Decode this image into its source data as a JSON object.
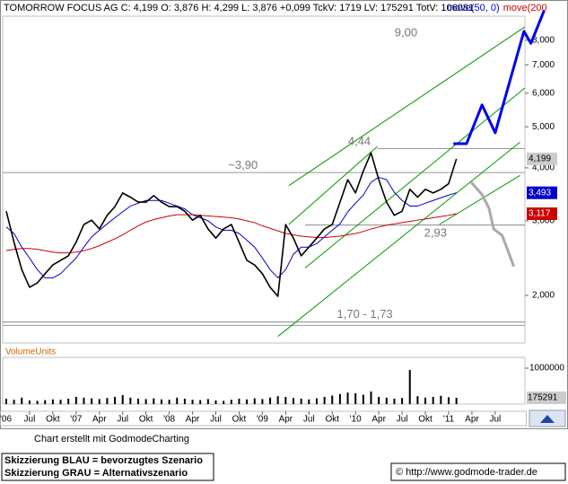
{
  "chart_data": {
    "type": "line",
    "title": "TOMORROW FOCUS AG C: 4,199 O: 3,876 H: 4,299 L: 3,876 +0,099 TckV: 1719 LV: 175291 TotV: 106081",
    "log_scale": true,
    "ylim": [
      1.544,
      9.12
    ],
    "yticks": [
      {
        "value": 2,
        "label": "2,000"
      },
      {
        "value": 3,
        "label": "3,000"
      },
      {
        "value": 4,
        "label": "4,000"
      },
      {
        "value": 5,
        "label": "5,000"
      },
      {
        "value": 6,
        "label": "6,000"
      },
      {
        "value": 7,
        "label": "7,000"
      },
      {
        "value": 8,
        "label": "8,000"
      }
    ],
    "xlim": [
      2.54,
      72.95
    ],
    "xticks": [
      {
        "value": 0,
        "label": "'06"
      },
      {
        "value": 6,
        "label": "Jul"
      },
      {
        "value": 9,
        "label": "Okt"
      },
      {
        "value": 12,
        "label": "'07"
      },
      {
        "value": 15,
        "label": "Apr"
      },
      {
        "value": 18,
        "label": "Jul"
      },
      {
        "value": 21,
        "label": "Okt"
      },
      {
        "value": 24,
        "label": "'08"
      },
      {
        "value": 27,
        "label": "Apr"
      },
      {
        "value": 30,
        "label": "Jul"
      },
      {
        "value": 33,
        "label": "Okt"
      },
      {
        "value": 36,
        "label": "'09"
      },
      {
        "value": 39,
        "label": "Apr"
      },
      {
        "value": 42,
        "label": "Jul"
      },
      {
        "value": 45,
        "label": "Okt"
      },
      {
        "value": 48,
        "label": "'10"
      },
      {
        "value": 51,
        "label": "Apr"
      },
      {
        "value": 54,
        "label": "Jul"
      },
      {
        "value": 57,
        "label": "Okt"
      },
      {
        "value": 60,
        "label": "'11"
      },
      {
        "value": 63,
        "label": "Apr"
      },
      {
        "value": 66,
        "label": "Jul"
      }
    ],
    "x": [
      3,
      4,
      5,
      6,
      7,
      8,
      9,
      10,
      11,
      12,
      13,
      14,
      15,
      16,
      17,
      18,
      19,
      20,
      21,
      22,
      23,
      24,
      25,
      26,
      27,
      28,
      29,
      30,
      31,
      32,
      33,
      34,
      35,
      36,
      37,
      38,
      39,
      40,
      41,
      42,
      43,
      44,
      45,
      46,
      47,
      48,
      49,
      50,
      51,
      52,
      53,
      54,
      55,
      56,
      57,
      58,
      59,
      60,
      61
    ],
    "price": {
      "color": "#000000",
      "values": [
        3.16,
        2.67,
        2.3,
        2.09,
        2.14,
        2.25,
        2.36,
        2.42,
        2.48,
        2.67,
        2.94,
        3.01,
        2.87,
        3.09,
        3.24,
        3.49,
        3.41,
        3.32,
        3.32,
        3.44,
        3.32,
        3.24,
        3.24,
        3.16,
        3.01,
        3.09,
        2.87,
        2.73,
        2.87,
        2.94,
        2.67,
        2.42,
        2.36,
        2.25,
        2.09,
        1.99,
        2.94,
        2.73,
        2.48,
        2.6,
        2.73,
        2.87,
        2.94,
        3.32,
        3.75,
        3.49,
        3.93,
        4.34,
        3.75,
        3.32,
        3.09,
        3.16,
        3.56,
        3.41,
        3.56,
        3.49,
        3.56,
        3.67,
        4.199
      ]
    },
    "series": [
      {
        "name": "move(50, 0)",
        "color": "#0000cc",
        "values": [
          2.9,
          2.8,
          2.6,
          2.45,
          2.3,
          2.2,
          2.2,
          2.25,
          2.35,
          2.45,
          2.6,
          2.75,
          2.85,
          2.95,
          3.05,
          3.15,
          3.25,
          3.3,
          3.35,
          3.35,
          3.35,
          3.3,
          3.25,
          3.2,
          3.1,
          3.05,
          3.0,
          2.9,
          2.85,
          2.85,
          2.8,
          2.7,
          2.6,
          2.45,
          2.3,
          2.2,
          2.3,
          2.5,
          2.6,
          2.6,
          2.65,
          2.75,
          2.85,
          2.95,
          3.15,
          3.3,
          3.45,
          3.7,
          3.8,
          3.75,
          3.5,
          3.35,
          3.25,
          3.25,
          3.3,
          3.35,
          3.4,
          3.45,
          3.493
        ]
      },
      {
        "name": "move(200",
        "color": "#cc0000",
        "values": [
          2.55,
          2.57,
          2.58,
          2.58,
          2.57,
          2.55,
          2.53,
          2.52,
          2.52,
          2.53,
          2.55,
          2.58,
          2.62,
          2.67,
          2.72,
          2.78,
          2.85,
          2.92,
          2.98,
          3.02,
          3.05,
          3.08,
          3.1,
          3.1,
          3.1,
          3.09,
          3.08,
          3.07,
          3.06,
          3.05,
          3.03,
          3.0,
          2.97,
          2.92,
          2.88,
          2.84,
          2.8,
          2.78,
          2.76,
          2.75,
          2.74,
          2.74,
          2.75,
          2.76,
          2.78,
          2.8,
          2.83,
          2.87,
          2.9,
          2.93,
          2.95,
          2.97,
          2.99,
          3.01,
          3.03,
          3.05,
          3.07,
          3.09,
          3.117
        ]
      }
    ],
    "price_tags": [
      {
        "value": 4.199,
        "label": "4,199",
        "color": "#cccccc",
        "text_color": "#000000"
      },
      {
        "value": 3.493,
        "label": "3,493",
        "color": "#0000cc",
        "text_color": "#ffffff"
      },
      {
        "value": 3.117,
        "label": "3,117",
        "color": "#cc0000",
        "text_color": "#ffffff"
      }
    ],
    "trendlines": [
      {
        "color": "#009900",
        "x": [
          39.4,
          69.8
        ],
        "y": [
          3.63,
          8.6
        ]
      },
      {
        "color": "#009900",
        "x": [
          41.5,
          69.8
        ],
        "y": [
          2.32,
          6.17
        ]
      },
      {
        "color": "#009900",
        "x": [
          38.0,
          69.2
        ],
        "y": [
          1.6,
          4.6
        ]
      },
      {
        "color": "#009900",
        "x": [
          39.4,
          50.8
        ],
        "y": [
          2.94,
          4.49
        ]
      },
      {
        "color": "#009900",
        "x": [
          58.8,
          69.2
        ],
        "y": [
          2.94,
          3.84
        ]
      }
    ],
    "scenarios": [
      {
        "color": "#0000ee",
        "x": [
          60.6,
          62.3,
          64.3,
          66.0,
          69.7,
          70.6,
          72.3
        ],
        "y": [
          4.56,
          4.56,
          5.63,
          4.84,
          8.4,
          7.87,
          9.4
        ]
      },
      {
        "color": "#aaaaaa",
        "x": [
          62.9,
          64.3,
          65.2,
          65.8,
          66.9,
          68.4
        ],
        "y": [
          3.7,
          3.46,
          3.21,
          2.87,
          2.77,
          2.34
        ]
      }
    ],
    "levels": [
      {
        "value": 3.9
      },
      {
        "value": 4.44,
        "from": 50.8
      },
      {
        "value": 2.93,
        "from": 41.5
      },
      {
        "value": 1.73
      },
      {
        "value": 1.7
      }
    ],
    "annotations": [
      {
        "text": "9,00",
        "x": 54.5,
        "y": 8.3
      },
      {
        "text": "4,44",
        "x": 48.5,
        "y": 4.6
      },
      {
        "text": "~3,90",
        "x": 33.5,
        "y": 4.05
      },
      {
        "text": "2,93",
        "x": 58.3,
        "y": 2.8
      },
      {
        "text": "1,70 - 1,73",
        "x": 49.2,
        "y": 1.8
      }
    ],
    "volume": {
      "title": "VolumeUnits",
      "color": "#000000",
      "values": [
        150000,
        120000,
        180000,
        100000,
        90000,
        110000,
        130000,
        120000,
        150000,
        200000,
        180000,
        160000,
        140000,
        170000,
        200000,
        250000,
        180000,
        150000,
        140000,
        160000,
        130000,
        120000,
        180000,
        150000,
        120000,
        110000,
        140000,
        100000,
        90000,
        120000,
        150000,
        130000,
        160000,
        140000,
        180000,
        220000,
        200000,
        170000,
        150000,
        130000,
        160000,
        200000,
        240000,
        280000,
        320000,
        300000,
        260000,
        350000,
        200000,
        180000,
        150000,
        170000,
        950000,
        220000,
        180000,
        200000,
        230000,
        190000,
        175291
      ],
      "ylim": [
        0,
        1300000
      ],
      "yticks": [
        1000000
      ],
      "tag": 175291
    },
    "credit": "Chart erstellt mit GodmodeCharting",
    "notes": [
      "Skizzierung BLAU = bevorzugtes Szenario",
      "Skizzierung GRAU = Alternativszenario"
    ],
    "url": "© http://www.godmode-trader.de"
  }
}
